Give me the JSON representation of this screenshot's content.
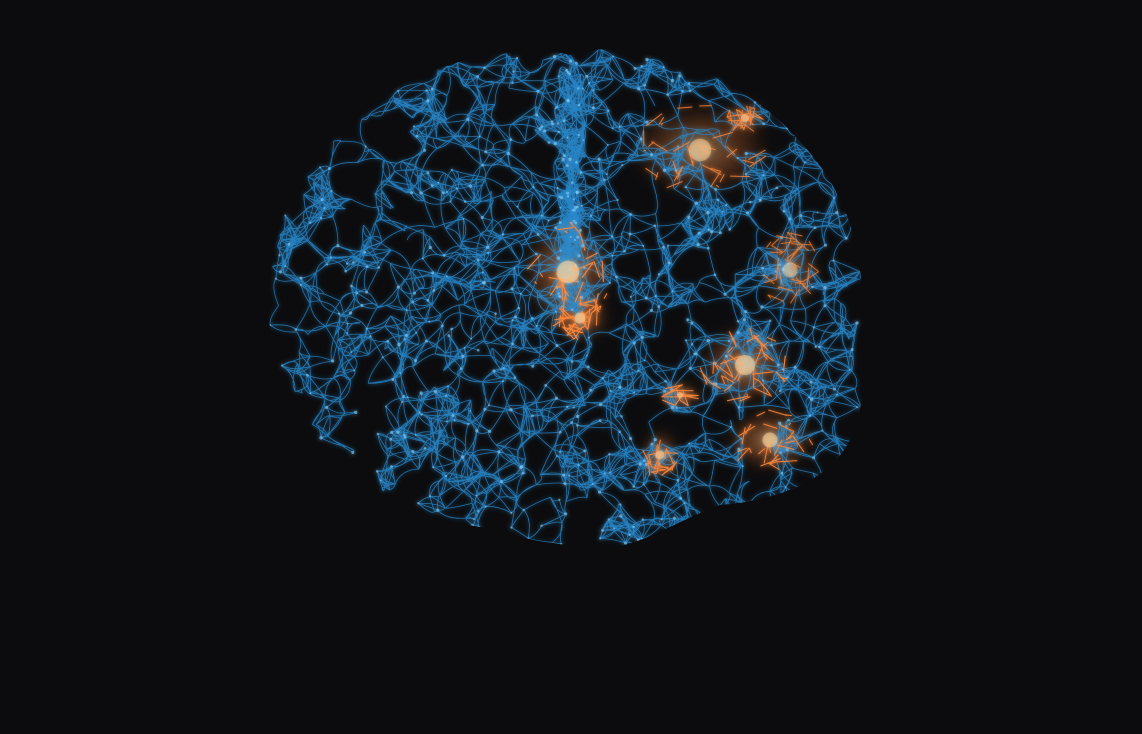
{
  "scene": {
    "subject": "brain-network-visualization",
    "background_color": "#0c0c0e",
    "network_color": "#2a8fd6",
    "network_highlight_color": "#7fd0ff",
    "hotspot_color": "#ff8a3d",
    "hotspot_core_color": "#ffd6a0",
    "hotspots": [
      {
        "name": "central-cluster",
        "intensity": 0.95
      },
      {
        "name": "upper-right-cluster",
        "intensity": 0.8
      },
      {
        "name": "right-mid-cluster",
        "intensity": 0.7
      },
      {
        "name": "lower-right-cluster",
        "intensity": 0.9
      }
    ]
  }
}
